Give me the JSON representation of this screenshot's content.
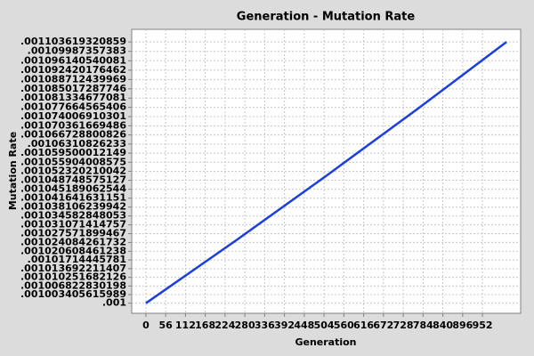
{
  "chart_data": {
    "type": "line",
    "title": "Generation - Mutation Rate",
    "x_label": "Generation",
    "y_label": "Mutation Rate",
    "x": [
      0,
      255,
      510,
      765,
      1020
    ],
    "series": [
      {
        "color": "#1a3ee0",
        "values": [
          0.001,
          0.0010249,
          0.0010505,
          0.0010767,
          0.0011036
        ]
      }
    ],
    "xlim": [
      -40,
      1060
    ],
    "ylim": [
      0.000996,
      0.0011086
    ],
    "xticks": [
      0,
      56,
      112,
      168,
      224,
      280,
      336,
      392,
      448,
      504,
      560,
      616,
      672,
      728,
      784,
      840,
      896,
      952
    ],
    "yticks": [
      {
        "value": 0.001,
        "label": ".001"
      },
      {
        "value": 0.001003405615989,
        "label": ".001003405615989"
      },
      {
        "value": 0.001006822830198,
        "label": ".001006822830198"
      },
      {
        "value": 0.001010251682126,
        "label": ".001010251682126"
      },
      {
        "value": 0.001013692211407,
        "label": ".001013692211407"
      },
      {
        "value": 0.00101714445781,
        "label": ".00101714445781"
      },
      {
        "value": 0.001020608461238,
        "label": ".001020608461238"
      },
      {
        "value": 0.001024084261732,
        "label": ".001024084261732"
      },
      {
        "value": 0.001027571899467,
        "label": ".001027571899467"
      },
      {
        "value": 0.001031071414757,
        "label": ".001031071414757"
      },
      {
        "value": 0.001034582848053,
        "label": ".001034582848053"
      },
      {
        "value": 0.001038106239942,
        "label": ".001038106239942"
      },
      {
        "value": 0.001041641631151,
        "label": ".001041641631151"
      },
      {
        "value": 0.001045189062544,
        "label": ".001045189062544"
      },
      {
        "value": 0.001048748575127,
        "label": ".001048748575127"
      },
      {
        "value": 0.001052320210042,
        "label": ".001052320210042"
      },
      {
        "value": 0.001055904008575,
        "label": ".001055904008575"
      },
      {
        "value": 0.001059500012149,
        "label": ".001059500012149"
      },
      {
        "value": 0.00106310826233,
        "label": ".00106310826233"
      },
      {
        "value": 0.001066728800826,
        "label": ".001066728800826"
      },
      {
        "value": 0.001070361669486,
        "label": ".001070361669486"
      },
      {
        "value": 0.001074006910301,
        "label": ".001074006910301"
      },
      {
        "value": 0.001077664565406,
        "label": ".001077664565406"
      },
      {
        "value": 0.001081334677081,
        "label": ".001081334677081"
      },
      {
        "value": 0.001085017287746,
        "label": ".001085017287746"
      },
      {
        "value": 0.001088712439969,
        "label": ".001088712439969"
      },
      {
        "value": 0.001092420176462,
        "label": ".001092420176462"
      },
      {
        "value": 0.001096140540081,
        "label": ".001096140540081"
      },
      {
        "value": 0.00109987357383,
        "label": ".00109987357383"
      },
      {
        "value": 0.001103619320859,
        "label": ".001103619320859"
      }
    ],
    "grid": true
  }
}
